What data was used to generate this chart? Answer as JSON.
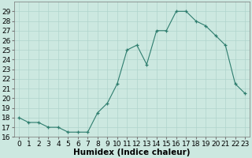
{
  "x": [
    0,
    1,
    2,
    3,
    4,
    5,
    6,
    7,
    8,
    9,
    10,
    11,
    12,
    13,
    14,
    15,
    16,
    17,
    18,
    19,
    20,
    21,
    22,
    23
  ],
  "y": [
    18,
    17.5,
    17.5,
    17,
    17,
    16.5,
    16.5,
    16.5,
    18.5,
    19.5,
    21.5,
    25,
    25.5,
    23.5,
    27,
    27,
    29,
    29,
    28,
    27.5,
    26.5,
    25.5,
    21.5,
    20.5
  ],
  "line_color": "#2e7d6e",
  "marker": "+",
  "marker_color": "#2e7d6e",
  "bg_color": "#cce8e0",
  "grid_color": "#b0d4cc",
  "xlabel": "Humidex (Indice chaleur)",
  "ylim": [
    16,
    30
  ],
  "xlim": [
    -0.5,
    23.5
  ],
  "yticks": [
    16,
    17,
    18,
    19,
    20,
    21,
    22,
    23,
    24,
    25,
    26,
    27,
    28,
    29
  ],
  "xticks": [
    0,
    1,
    2,
    3,
    4,
    5,
    6,
    7,
    8,
    9,
    10,
    11,
    12,
    13,
    14,
    15,
    16,
    17,
    18,
    19,
    20,
    21,
    22,
    23
  ],
  "tick_fontsize": 6.5,
  "label_fontsize": 7.5
}
